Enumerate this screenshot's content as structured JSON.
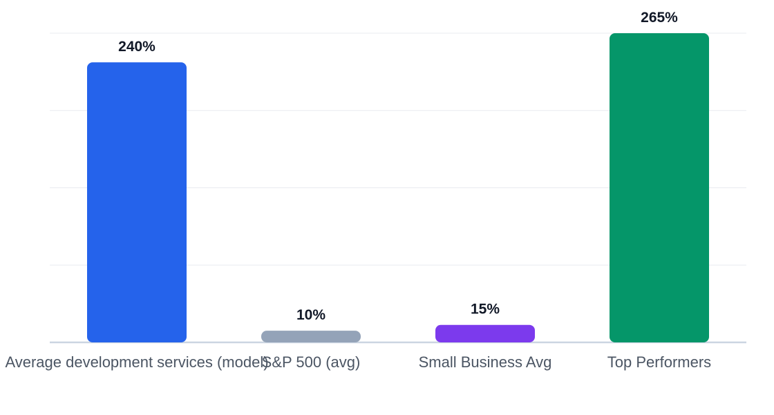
{
  "chart_data": {
    "type": "bar",
    "categories": [
      "Average development services (model)",
      "S&P 500 (avg)",
      "Small Business Avg",
      "Top Performers"
    ],
    "values": [
      240,
      10,
      15,
      265
    ],
    "value_labels": [
      "240%",
      "10%",
      "15%",
      "265%"
    ],
    "colors": [
      "#2563eb",
      "#94a3b8",
      "#7c3aed",
      "#059669"
    ],
    "title": "",
    "xlabel": "",
    "ylabel": "",
    "ylim": [
      0,
      265
    ],
    "grid": true,
    "legend": "none"
  }
}
